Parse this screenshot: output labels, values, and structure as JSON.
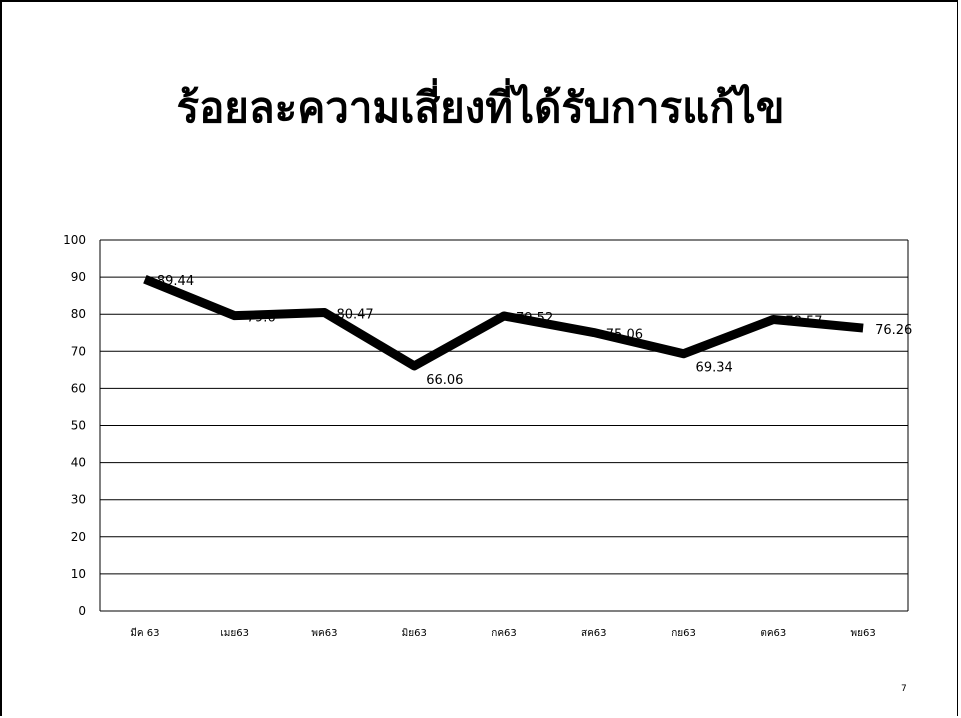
{
  "slide": {
    "title": "ร้อยละความเสี่ยงที่ได้รับการแก้ไข",
    "page_number": "7"
  },
  "chart_data": {
    "type": "line",
    "title": "",
    "xlabel": "",
    "ylabel": "",
    "ylim": [
      0,
      100
    ],
    "y_ticks": [
      0,
      10,
      20,
      30,
      40,
      50,
      60,
      70,
      80,
      90,
      100
    ],
    "grid": true,
    "categories": [
      "มีค 63",
      "เมย63",
      "พค63",
      "มิย63",
      "กค63",
      "สค63",
      "กย63",
      "ตค63",
      "พย63"
    ],
    "series": [
      {
        "values": [
          89.44,
          79.6,
          80.47,
          66.06,
          79.52,
          75.06,
          69.34,
          78.57,
          76.26
        ],
        "data_labels": [
          "89.44",
          "79.6",
          "80.47",
          "66.06",
          "79.52",
          "75.06",
          "69.34",
          "78.57",
          "76.26"
        ],
        "color": "#000000"
      }
    ]
  }
}
